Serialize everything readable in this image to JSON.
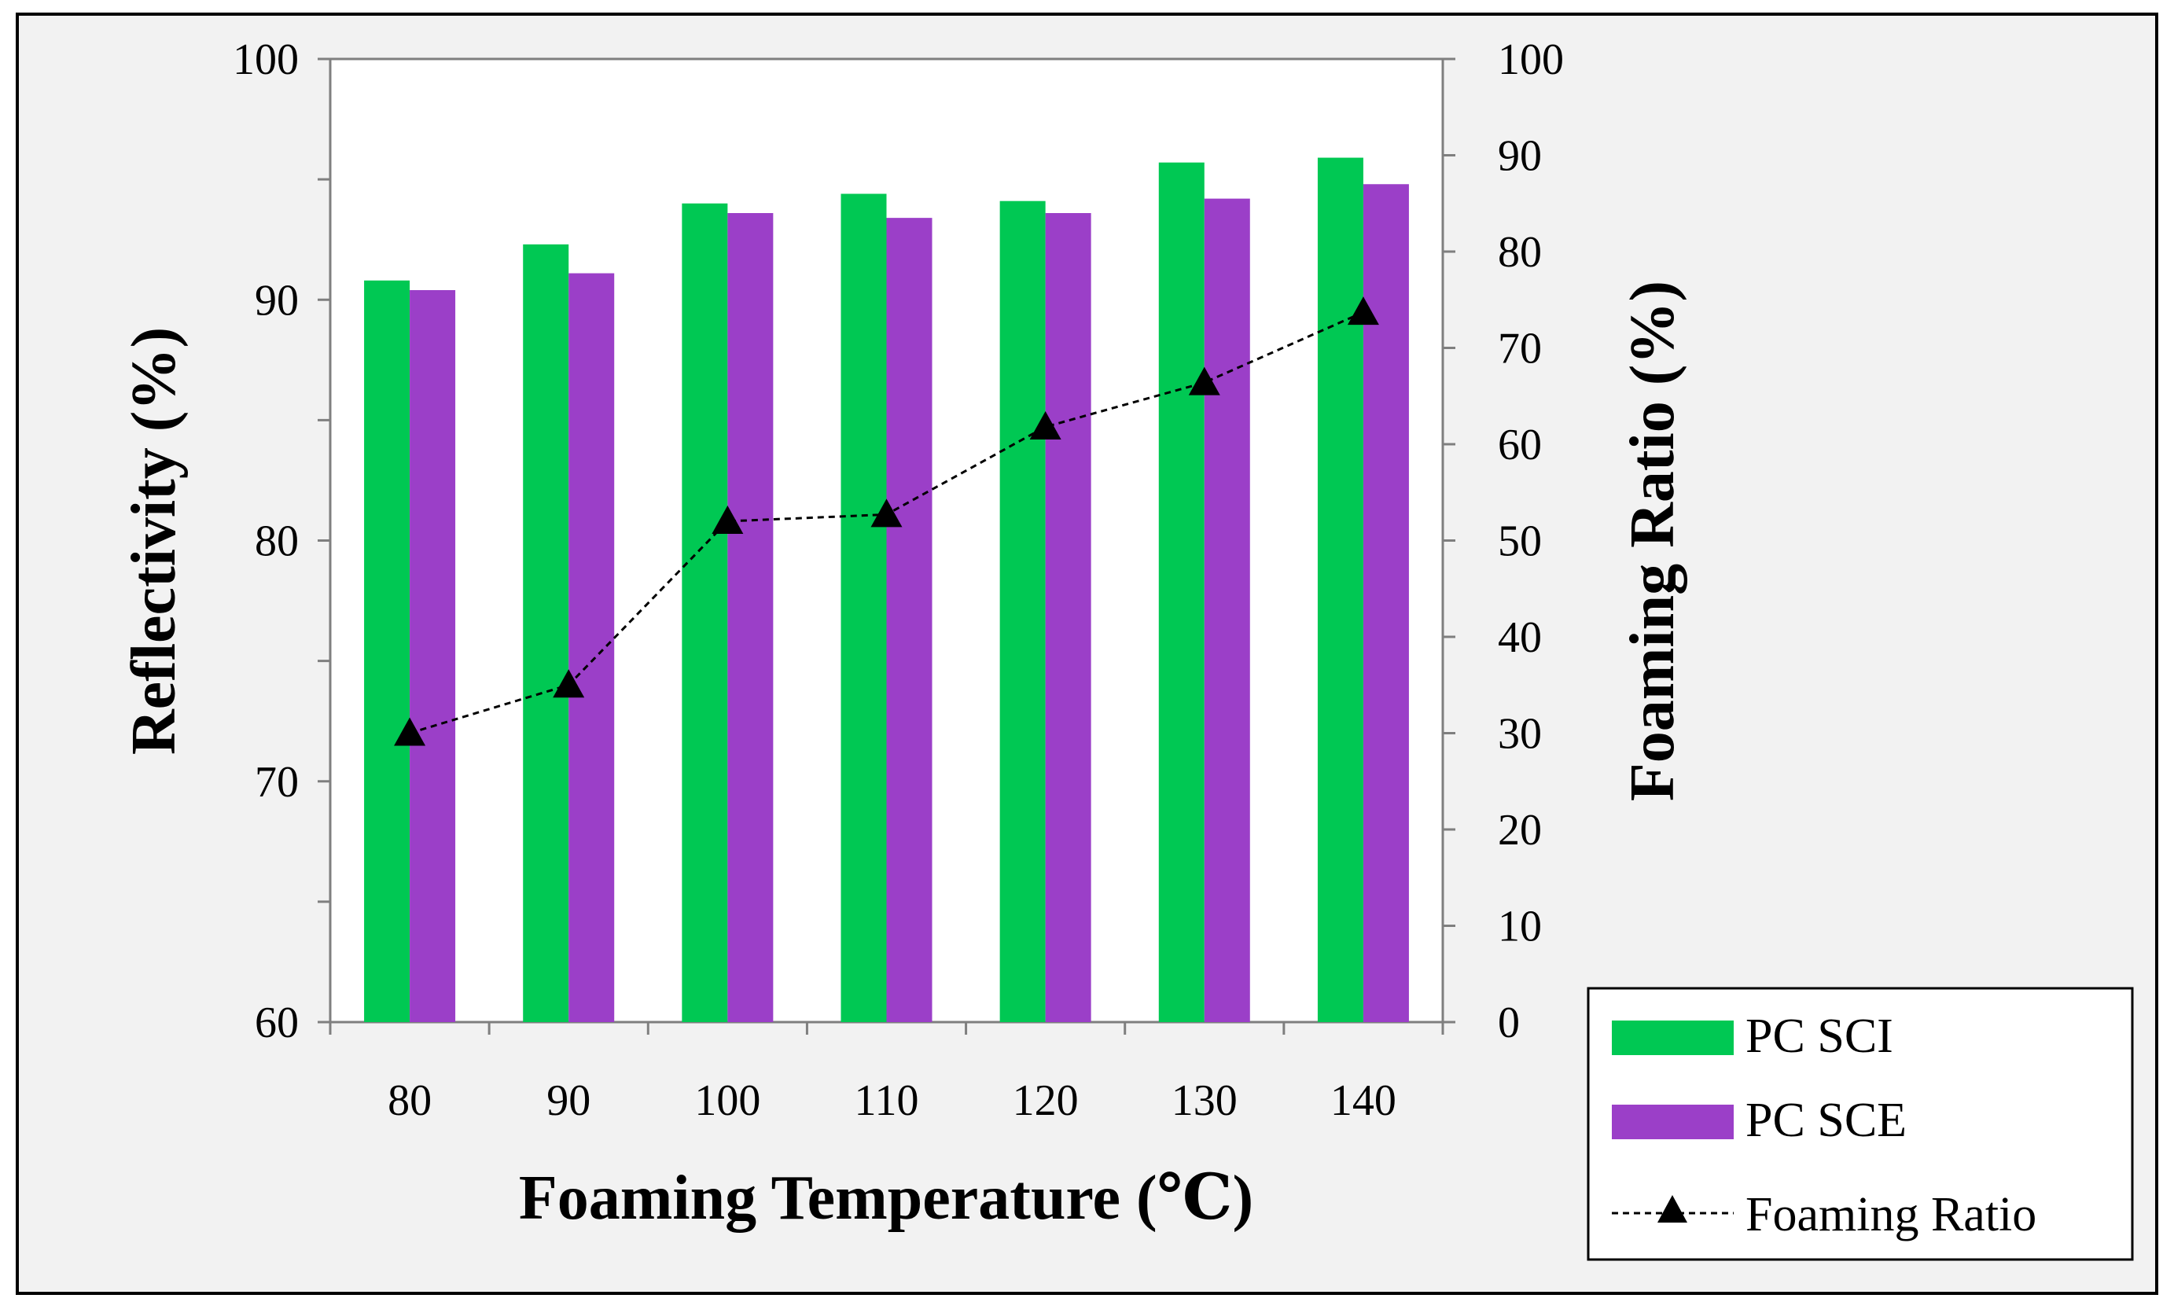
{
  "colors": {
    "frame_background": "#f2f2f2",
    "plot_background": "#ffffff",
    "border": "#000000",
    "axis": "#7f7f7f",
    "sci": "#00c853",
    "sce": "#9b3fc8",
    "line": "#000000"
  },
  "chart_data": {
    "type": "bar",
    "categories": [
      "80",
      "90",
      "100",
      "110",
      "120",
      "130",
      "140"
    ],
    "xlabel": "Foaming Temperature (℃)",
    "ylabel": "Reflectivity (%)",
    "y2label": "Foaming Ratio (%)",
    "ylim": [
      60,
      100
    ],
    "y2lim": [
      0,
      100
    ],
    "yticks": [
      "60",
      "70",
      "80",
      "90",
      "100"
    ],
    "y2ticks": [
      "0",
      "10",
      "20",
      "30",
      "40",
      "50",
      "60",
      "70",
      "80",
      "90",
      "100"
    ],
    "series": [
      {
        "name": "PC SCI",
        "type": "bar",
        "axis": "left",
        "color": "#00c853",
        "values": [
          90.8,
          92.3,
          94.0,
          94.4,
          94.1,
          95.7,
          95.9
        ]
      },
      {
        "name": "PC SCE",
        "type": "bar",
        "axis": "left",
        "color": "#9b3fc8",
        "values": [
          90.4,
          91.1,
          93.6,
          93.4,
          93.6,
          94.2,
          94.8
        ]
      },
      {
        "name": "Foaming Ratio",
        "type": "line",
        "axis": "right",
        "color": "#000000",
        "marker": "triangle",
        "line_style": "dashed",
        "values": [
          30.0,
          35.0,
          52.0,
          52.7,
          61.8,
          66.4,
          73.7
        ]
      }
    ],
    "legend": {
      "position": "bottom-right",
      "entries": [
        "PC SCI",
        "PC SCE",
        "Foaming Ratio"
      ]
    }
  }
}
